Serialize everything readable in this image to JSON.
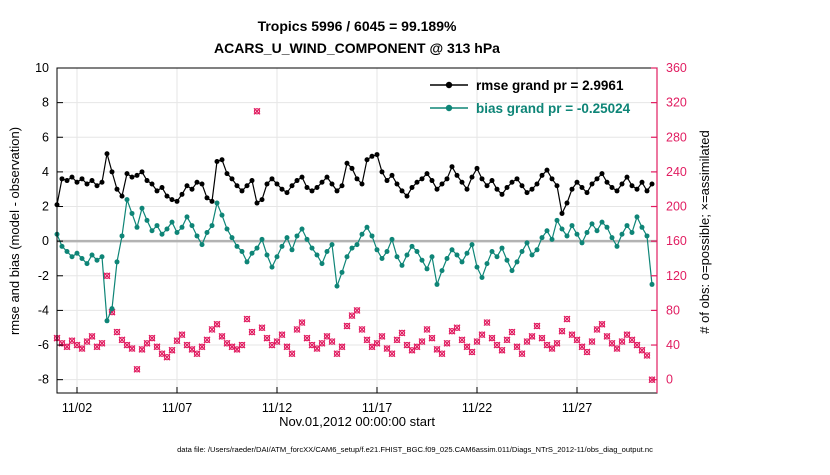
{
  "title": {
    "line1": "Tropics 5996 / 6045 = 99.189%",
    "line2": "ACARS_U_WIND_COMPONENT @ 313 hPa"
  },
  "legend": {
    "rmse_label": "rmse grand pr = 2.9961",
    "bias_label": "bias grand pr = -0.25024"
  },
  "axes": {
    "left_label": "rmse and bias (model - observation)",
    "right_label": "# of obs: o=possible; ×=assimilated",
    "x_label": "Nov.01,2012 00:00:00 start"
  },
  "footer": "data file: /Users/raeder/DAI/ATM_forcXX/CAM6_setup/f.e21.FHIST_BGC.f09_025.CAM6assim.011/Diags_NTrS_2012-11/obs_diag_output.nc",
  "colors": {
    "rmse": "#000000",
    "bias": "#0e8577",
    "obs": "#e11d61",
    "zero_line": "#b3b3b3",
    "grid": "#e6e6e6",
    "box": "#000000"
  },
  "chart_data": {
    "type": "line",
    "title": "Tropics 5996 / 6045 = 99.189%",
    "subtitle": "ACARS_U_WIND_COMPONENT @ 313 hPa",
    "stats": {
      "possible": 6045,
      "assimilated": 5996,
      "pct_assimilated": 99.189,
      "rmse_grand": 2.9961,
      "bias_grand": -0.25024
    },
    "xlim": [
      0,
      30
    ],
    "t0": 0,
    "dt": 0.25,
    "x_origin": "Nov.01,2012 00:00:00",
    "xticks": [
      {
        "day": 1,
        "label": "11/02"
      },
      {
        "day": 6,
        "label": "11/07"
      },
      {
        "day": 11,
        "label": "11/12"
      },
      {
        "day": 16,
        "label": "11/17"
      },
      {
        "day": 21,
        "label": "11/22"
      },
      {
        "day": 26,
        "label": "11/27"
      }
    ],
    "ylim_left": [
      -8.77,
      10
    ],
    "yticks_left": [
      -8,
      -6,
      -4,
      -2,
      0,
      2,
      4,
      6,
      8,
      10
    ],
    "ylim_right": [
      -15.4,
      360
    ],
    "yticks_right": [
      0,
      40,
      80,
      120,
      160,
      200,
      240,
      280,
      320,
      360
    ],
    "right_axis_map": "right_value = (left_value + 8) * 20",
    "series": [
      {
        "name": "rmse",
        "axis": "left",
        "marker": "filled-circle",
        "grand_mean": 2.9961,
        "values": [
          2.1,
          3.6,
          3.5,
          3.7,
          3.4,
          3.6,
          3.3,
          3.5,
          3.2,
          3.4,
          5.05,
          4.0,
          3.0,
          2.6,
          3.9,
          3.7,
          3.8,
          4.0,
          3.5,
          3.3,
          2.9,
          3.1,
          2.6,
          2.4,
          2.3,
          2.7,
          3.2,
          3.0,
          3.4,
          3.3,
          2.5,
          2.3,
          4.6,
          4.7,
          3.9,
          3.6,
          3.2,
          2.9,
          3.2,
          3.5,
          2.2,
          2.4,
          3.3,
          3.6,
          3.3,
          3.0,
          2.8,
          3.2,
          3.5,
          3.7,
          3.1,
          2.9,
          3.1,
          3.4,
          3.7,
          3.3,
          2.9,
          3.2,
          4.5,
          4.2,
          3.6,
          3.3,
          4.7,
          4.9,
          5.0,
          4.0,
          3.5,
          3.8,
          3.3,
          2.9,
          2.6,
          3.1,
          3.4,
          3.6,
          3.9,
          3.5,
          3.0,
          3.3,
          3.6,
          4.3,
          3.8,
          3.4,
          3.0,
          3.7,
          4.2,
          3.6,
          3.2,
          3.5,
          3.0,
          2.7,
          3.1,
          3.4,
          3.6,
          3.2,
          2.8,
          3.0,
          3.3,
          3.8,
          4.1,
          3.6,
          3.2,
          1.6,
          2.2,
          3.0,
          3.4,
          3.1,
          2.8,
          3.3,
          3.6,
          3.9,
          3.4,
          3.1,
          2.9,
          3.3,
          3.7,
          3.2,
          3.0,
          3.4,
          2.9,
          3.3
        ]
      },
      {
        "name": "bias",
        "axis": "left",
        "marker": "filled-circle",
        "grand_mean": -0.25024,
        "values": [
          0.4,
          -0.3,
          -0.6,
          -0.9,
          -0.7,
          -1.0,
          -1.3,
          -0.8,
          -1.1,
          -0.9,
          -4.6,
          -3.9,
          -1.2,
          0.3,
          2.4,
          1.6,
          0.8,
          1.9,
          1.2,
          0.6,
          0.9,
          0.4,
          0.7,
          1.1,
          0.5,
          0.8,
          1.4,
          0.9,
          0.3,
          -0.2,
          0.5,
          0.9,
          2.2,
          1.5,
          0.7,
          0.2,
          -0.3,
          -0.6,
          -1.2,
          -0.7,
          -0.4,
          0.1,
          -0.8,
          -1.5,
          -0.9,
          -0.3,
          0.2,
          -0.5,
          0.3,
          0.7,
          0.1,
          -0.4,
          -0.8,
          -1.3,
          -0.6,
          -0.2,
          -2.6,
          -1.8,
          -0.9,
          -0.4,
          -0.2,
          0.4,
          0.8,
          0.3,
          -0.5,
          -1.0,
          -0.6,
          0.1,
          -0.9,
          -1.4,
          -0.8,
          -0.3,
          -0.6,
          -1.1,
          -1.6,
          -0.9,
          -2.5,
          -1.7,
          -1.0,
          -0.5,
          -0.8,
          -1.2,
          -0.7,
          -0.2,
          -1.5,
          -2.1,
          -1.3,
          -0.6,
          -0.9,
          -0.4,
          -1.1,
          -1.7,
          -1.2,
          -0.6,
          -0.1,
          -0.8,
          -0.5,
          0.2,
          0.6,
          0.1,
          1.2,
          0.7,
          0.3,
          0.9,
          0.4,
          -0.1,
          0.5,
          1.0,
          0.6,
          1.1,
          0.8,
          0.2,
          -0.3,
          0.4,
          0.9,
          0.5,
          1.4,
          0.8,
          0.3,
          -2.5
        ]
      },
      {
        "name": "num_obs",
        "axis": "right",
        "marker": "circle-plus-cross",
        "note": "o=possible and ×=assimilated plotted at nearly identical values (5996/6045 assimilated)",
        "values": [
          48,
          42,
          38,
          45,
          40,
          36,
          44,
          50,
          38,
          42,
          120,
          78,
          55,
          46,
          40,
          36,
          12,
          35,
          42,
          48,
          38,
          30,
          26,
          34,
          45,
          52,
          40,
          35,
          30,
          38,
          46,
          58,
          64,
          50,
          42,
          38,
          35,
          40,
          70,
          55,
          310,
          60,
          48,
          40,
          44,
          52,
          38,
          30,
          58,
          66,
          48,
          40,
          36,
          42,
          50,
          44,
          30,
          38,
          62,
          74,
          80,
          58,
          46,
          38,
          42,
          50,
          36,
          30,
          46,
          54,
          40,
          34,
          38,
          44,
          58,
          48,
          35,
          30,
          42,
          56,
          60,
          46,
          38,
          32,
          44,
          52,
          66,
          48,
          40,
          34,
          46,
          55,
          38,
          30,
          44,
          50,
          62,
          48,
          40,
          36,
          42,
          56,
          70,
          52,
          46,
          38,
          32,
          44,
          58,
          64,
          50,
          42,
          36,
          44,
          52,
          46,
          40,
          34,
          28,
          0
        ]
      }
    ]
  }
}
